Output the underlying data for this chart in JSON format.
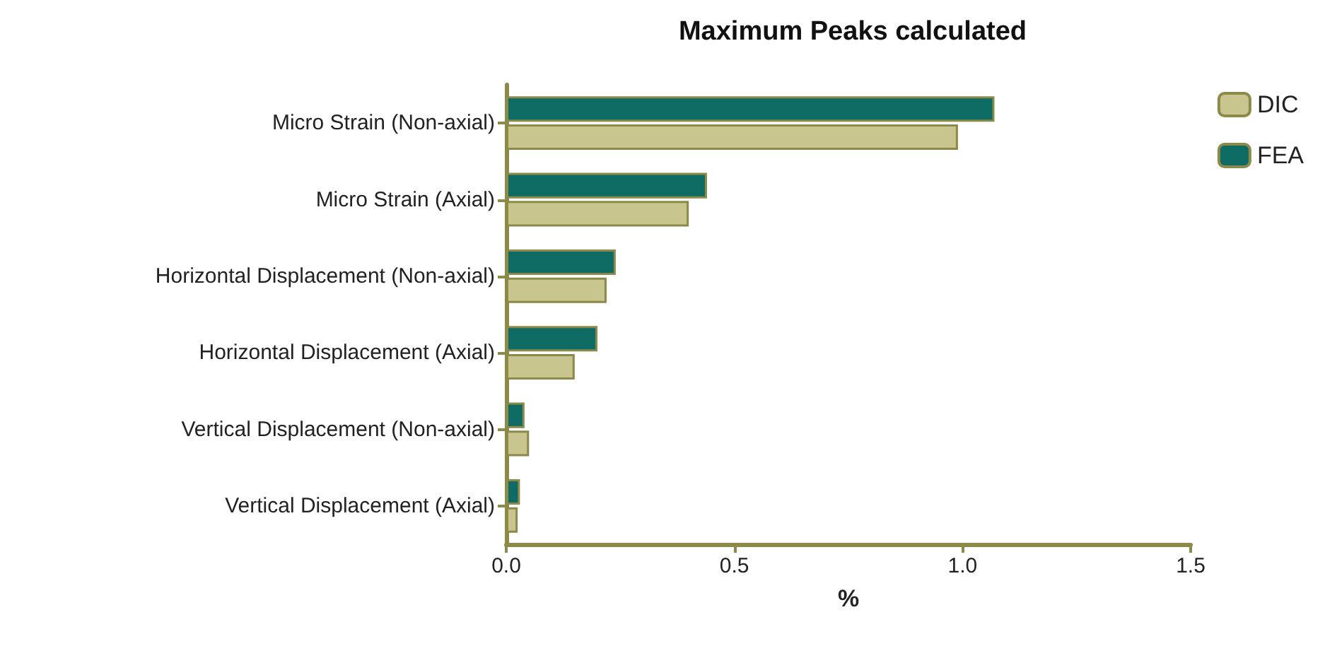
{
  "chart_data": {
    "type": "bar",
    "orientation": "horizontal",
    "title": "Maximum Peaks calculated",
    "xlabel": "%",
    "categories": [
      "Micro Strain (Non-axial)",
      "Micro Strain (Axial)",
      "Horizontal Displacement (Non-axial)",
      "Horizontal Displacement (Axial)",
      "Vertical Displacement (Non-axial)",
      "Vertical Displacement (Axial)"
    ],
    "series": [
      {
        "name": "DIC",
        "color": "#c9c58f",
        "values": [
          0.99,
          0.4,
          0.22,
          0.15,
          0.05,
          0.025
        ]
      },
      {
        "name": "FEA",
        "color": "#0e6b63",
        "values": [
          1.07,
          0.44,
          0.24,
          0.2,
          0.04,
          0.03
        ]
      }
    ],
    "xlim": [
      0,
      1.5
    ],
    "xticks": [
      {
        "value": 0,
        "label": "0.0"
      },
      {
        "value": 0.5,
        "label": "0.5"
      },
      {
        "value": 1,
        "label": "1.0"
      },
      {
        "value": 1.5,
        "label": "1.5"
      }
    ],
    "grid": false,
    "legend": "top right"
  }
}
